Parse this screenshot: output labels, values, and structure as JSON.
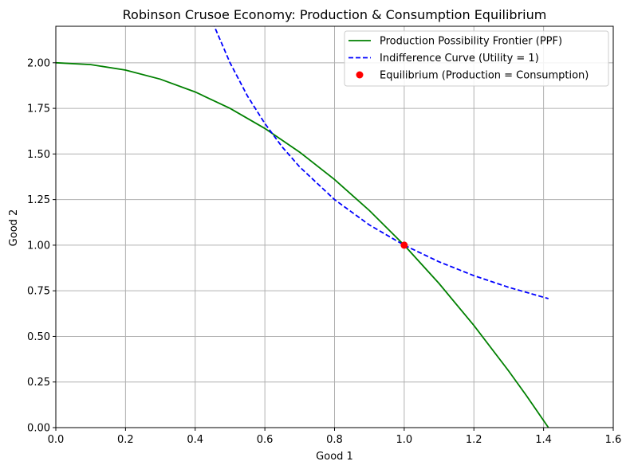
{
  "chart_data": {
    "type": "line",
    "title": "Robinson Crusoe Economy: Production & Consumption Equilibrium",
    "xlabel": "Good 1",
    "ylabel": "Good 2",
    "xlim": [
      0,
      1.6
    ],
    "ylim": [
      0,
      2.2
    ],
    "xticks": [
      0.0,
      0.2,
      0.4,
      0.6,
      0.8,
      1.0,
      1.2,
      1.4,
      1.6
    ],
    "xtick_labels": [
      "0.0",
      "0.2",
      "0.4",
      "0.6",
      "0.8",
      "1.0",
      "1.2",
      "1.4",
      "1.6"
    ],
    "yticks": [
      0.0,
      0.25,
      0.5,
      0.75,
      1.0,
      1.25,
      1.5,
      1.75,
      2.0
    ],
    "ytick_labels": [
      "0.00",
      "0.25",
      "0.50",
      "0.75",
      "1.00",
      "1.25",
      "1.50",
      "1.75",
      "2.00"
    ],
    "grid": true,
    "legend_position": "top-right",
    "series": [
      {
        "name": "Production Possibility Frontier (PPF)",
        "style": "solid",
        "color": "#008000",
        "x": [
          0.0,
          0.1,
          0.2,
          0.3,
          0.4,
          0.5,
          0.6,
          0.7,
          0.8,
          0.9,
          1.0,
          1.1,
          1.2,
          1.3,
          1.35,
          1.414
        ],
        "y": [
          2.0,
          1.99,
          1.96,
          1.91,
          1.84,
          1.75,
          1.64,
          1.51,
          1.36,
          1.19,
          1.0,
          0.79,
          0.56,
          0.31,
          0.1775,
          0.0
        ]
      },
      {
        "name": "Indifference Curve (Utility = 1)",
        "style": "dashed",
        "color": "#0000ff",
        "x": [
          0.45,
          0.5,
          0.55,
          0.6,
          0.65,
          0.7,
          0.8,
          0.9,
          1.0,
          1.1,
          1.2,
          1.3,
          1.414
        ],
        "y": [
          2.222,
          2.0,
          1.818,
          1.667,
          1.538,
          1.429,
          1.25,
          1.111,
          1.0,
          0.909,
          0.833,
          0.769,
          0.707
        ]
      },
      {
        "name": "Equilibrium (Production = Consumption)",
        "style": "marker",
        "color": "#ff0000",
        "x": [
          1.0
        ],
        "y": [
          1.0
        ]
      }
    ]
  }
}
